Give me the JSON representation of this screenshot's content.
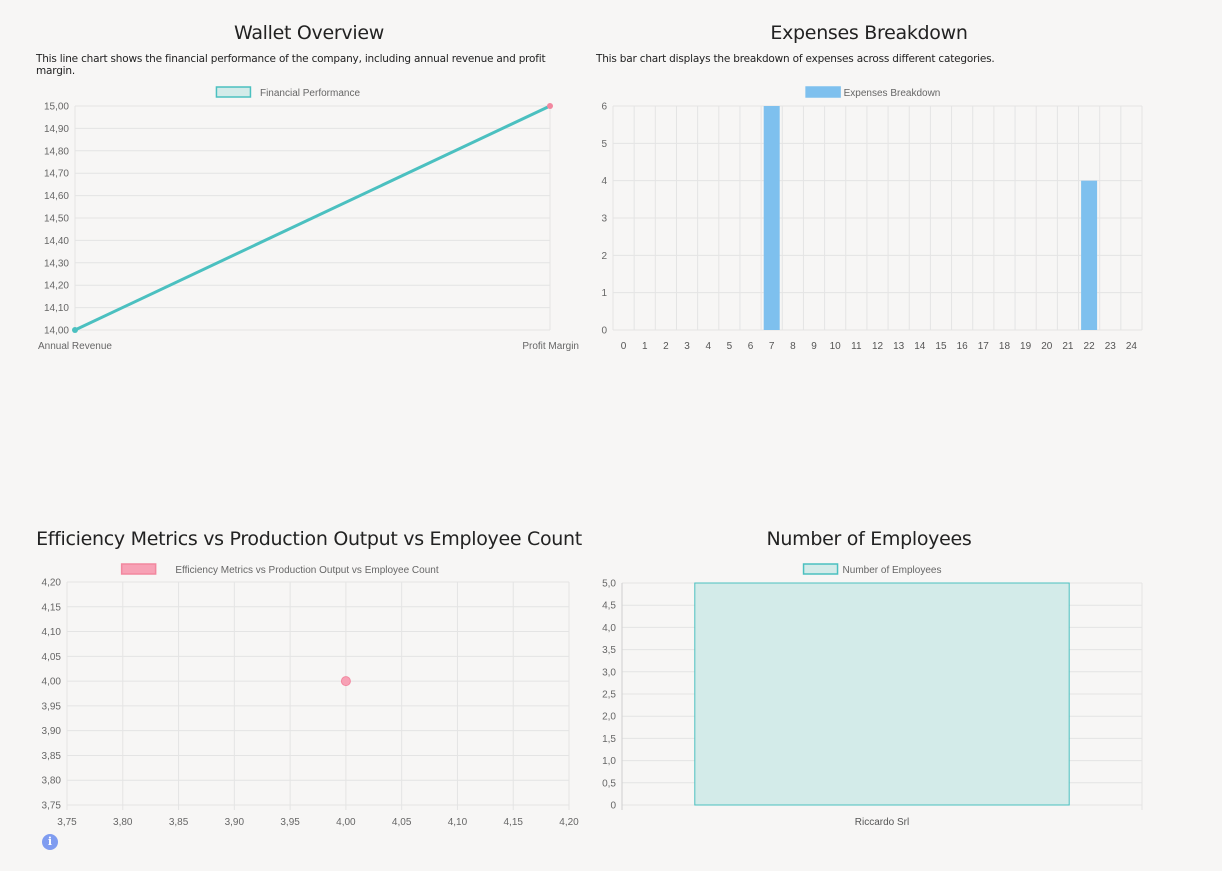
{
  "panels": {
    "wallet": {
      "title": "Wallet Overview",
      "description": "This line chart shows the financial performance of the company, including annual revenue and profit margin."
    },
    "expenses": {
      "title": "Expenses Breakdown",
      "description": "This bar chart displays the breakdown of expenses across different categories."
    },
    "efficiency": {
      "title": "Efficiency Metrics vs Production Output vs Employee Count"
    },
    "employees": {
      "title": "Number of Employees"
    }
  },
  "info_icon": "info-icon",
  "colors": {
    "teal": "#4bc0c0",
    "teal_fill": "#d3ebe9",
    "blue": "#7ec0ee",
    "pink": "#f2879f",
    "pink_fill": "#f7a1b5",
    "grid": "#e4e4e4",
    "axis": "#cfcfcf"
  },
  "chart_data": [
    {
      "type": "line",
      "legend": "Financial Performance",
      "categories": [
        "Annual Revenue",
        "Profit Margin"
      ],
      "values": [
        14.0,
        15.0
      ],
      "ylim": [
        14.0,
        15.0
      ],
      "yticks": [
        "15,00",
        "14,90",
        "14,80",
        "14,70",
        "14,60",
        "14,50",
        "14,40",
        "14,30",
        "14,20",
        "14,10",
        "14,00"
      ],
      "grid": true,
      "legend_position": "top"
    },
    {
      "type": "bar",
      "legend": "Expenses Breakdown",
      "categories": [
        "0",
        "1",
        "2",
        "3",
        "4",
        "5",
        "6",
        "7",
        "8",
        "9",
        "10",
        "11",
        "12",
        "13",
        "14",
        "15",
        "16",
        "17",
        "18",
        "19",
        "20",
        "21",
        "22",
        "23",
        "24"
      ],
      "values": [
        null,
        null,
        null,
        null,
        null,
        null,
        null,
        6,
        null,
        null,
        null,
        null,
        null,
        null,
        null,
        null,
        null,
        null,
        null,
        null,
        null,
        null,
        4,
        null,
        null
      ],
      "ylim": [
        0,
        6
      ],
      "yticks": [
        "6",
        "5",
        "4",
        "3",
        "2",
        "1",
        "0"
      ],
      "grid": true,
      "legend_position": "top"
    },
    {
      "type": "scatter",
      "legend": "Efficiency Metrics vs Production Output vs Employee Count",
      "points": [
        {
          "x": 4.0,
          "y": 4.0
        }
      ],
      "xlim": [
        3.75,
        4.2
      ],
      "ylim": [
        3.75,
        4.2
      ],
      "xticks": [
        "3,75",
        "3,80",
        "3,85",
        "3,90",
        "3,95",
        "4,00",
        "4,05",
        "4,10",
        "4,15",
        "4,20"
      ],
      "yticks": [
        "4,20",
        "4,15",
        "4,10",
        "4,05",
        "4,00",
        "3,95",
        "3,90",
        "3,85",
        "3,80",
        "3,75"
      ],
      "grid": true,
      "legend_position": "top"
    },
    {
      "type": "bar",
      "legend": "Number of Employees",
      "categories": [
        "Riccardo Srl"
      ],
      "values": [
        5
      ],
      "ylim": [
        0,
        5
      ],
      "yticks": [
        "5,0",
        "4,5",
        "4,0",
        "3,5",
        "3,0",
        "2,5",
        "2,0",
        "1,5",
        "1,0",
        "0,5",
        "0"
      ],
      "grid": true,
      "legend_position": "top"
    }
  ]
}
